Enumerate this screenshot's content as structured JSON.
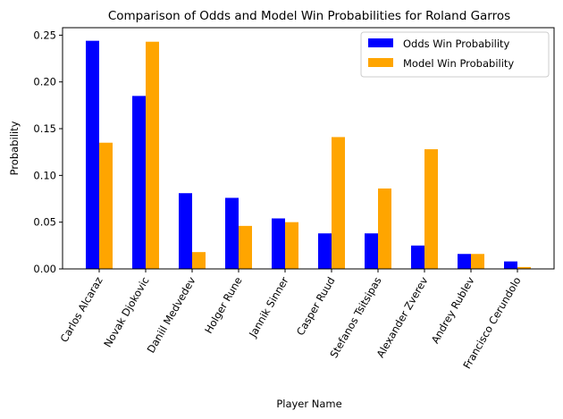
{
  "chart_data": {
    "type": "bar",
    "title": "Comparison of Odds and Model Win Probabilities for Roland Garros",
    "xlabel": "Player Name",
    "ylabel": "Probability",
    "ylim": [
      0,
      0.258
    ],
    "yticks": [
      "0.00",
      "0.05",
      "0.10",
      "0.15",
      "0.20",
      "0.25"
    ],
    "ytick_values": [
      0,
      0.05,
      0.1,
      0.15,
      0.2,
      0.25
    ],
    "categories": [
      "Carlos Alcaraz",
      "Novak Djokovic",
      "Daniil Medvedev",
      "Holger Rune",
      "Jannik Sinner",
      "Casper Ruud",
      "Stefanos Tsitsipas",
      "Alexander Zverev",
      "Andrey Rublev",
      "Francisco Cerundolo"
    ],
    "series": [
      {
        "name": "Odds Win Probability",
        "color": "#0000ff",
        "values": [
          0.244,
          0.185,
          0.081,
          0.076,
          0.054,
          0.038,
          0.038,
          0.025,
          0.016,
          0.008
        ]
      },
      {
        "name": "Model Win Probability",
        "color": "#ffa500",
        "values": [
          0.135,
          0.243,
          0.018,
          0.046,
          0.05,
          0.141,
          0.086,
          0.128,
          0.016,
          0.002
        ]
      }
    ],
    "legend_position": "top-right",
    "grid": false
  }
}
